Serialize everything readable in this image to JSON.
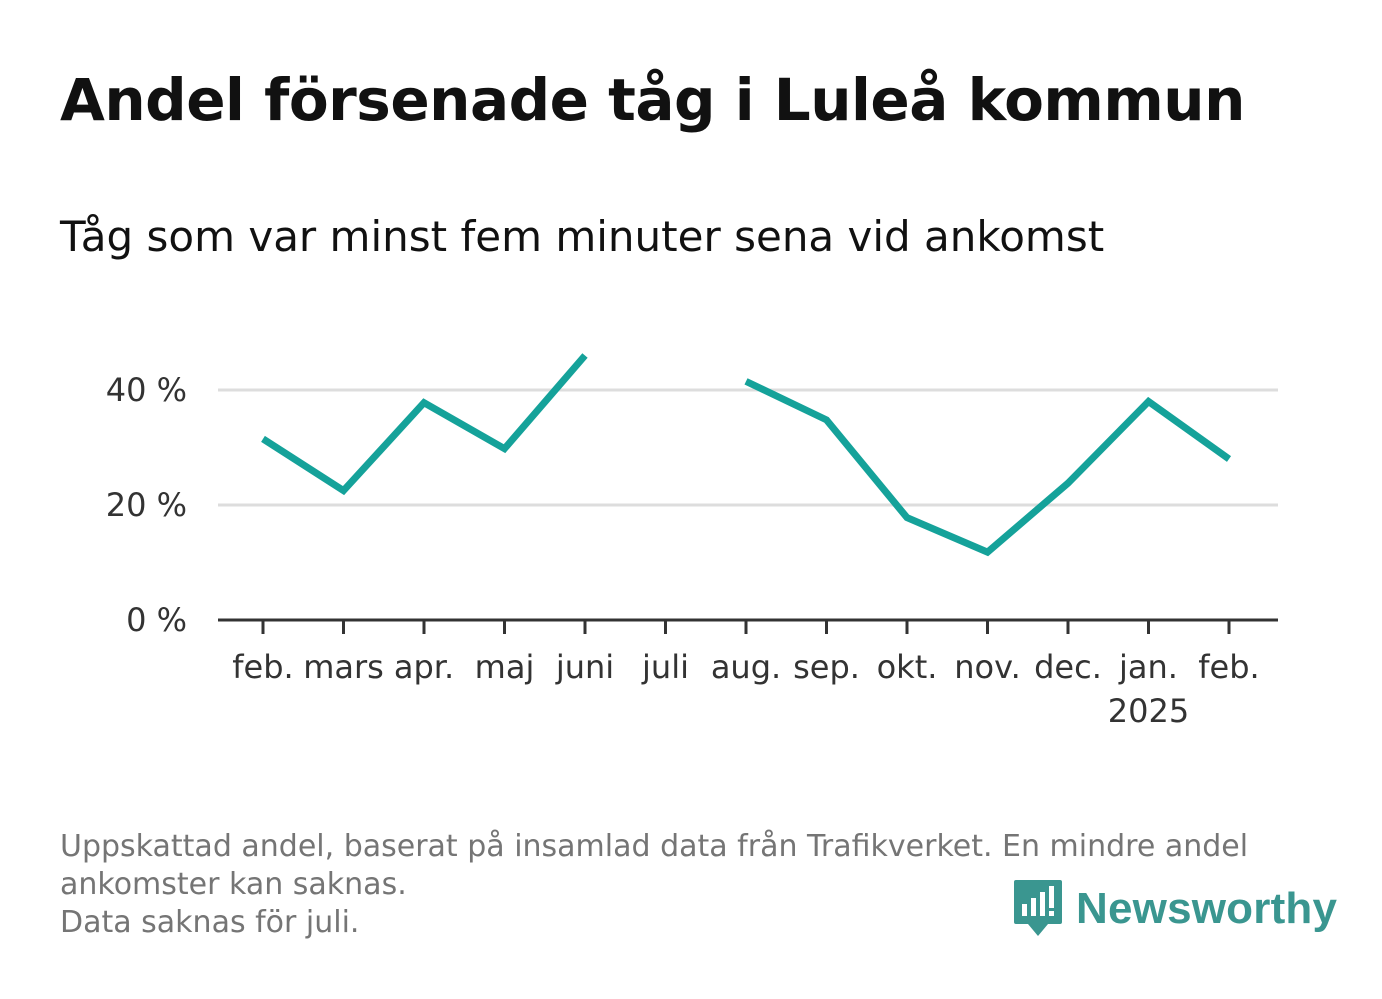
{
  "header": {
    "title": "Andel försenade tåg i Luleå kommun",
    "subtitle": "Tåg som var minst fem minuter sena vid ankomst"
  },
  "chart_data": {
    "type": "line",
    "categories": [
      "feb.",
      "mars",
      "apr.",
      "maj",
      "juni",
      "juli",
      "aug.",
      "sep.",
      "okt.",
      "nov.",
      "dec.",
      "jan.",
      "feb."
    ],
    "year_labels": [
      "",
      "",
      "",
      "",
      "",
      "",
      "",
      "",
      "",
      "",
      "",
      "2025",
      ""
    ],
    "series": [
      {
        "values": [
          31.5,
          22.5,
          37.8,
          29.8,
          46.0,
          null,
          41.5,
          34.8,
          17.8,
          11.8,
          23.8,
          38.0,
          28.0
        ]
      }
    ],
    "y_ticks": [
      0,
      20,
      40
    ],
    "y_tick_labels": [
      "0 %",
      "20 %",
      "40 %"
    ],
    "ylim": [
      0,
      46
    ],
    "grid": true,
    "line_color": "#15a29a"
  },
  "footer": {
    "note_line1": "Uppskattad andel, baserat på insamlad data från Trafikverket. En mindre andel",
    "note_line2": "ankomster kan saknas.",
    "note_line3": "Data saknas för juli."
  },
  "brand": {
    "name": "Newsworthy",
    "icon": "newsworthy-logo-icon",
    "color": "#3a9690"
  }
}
